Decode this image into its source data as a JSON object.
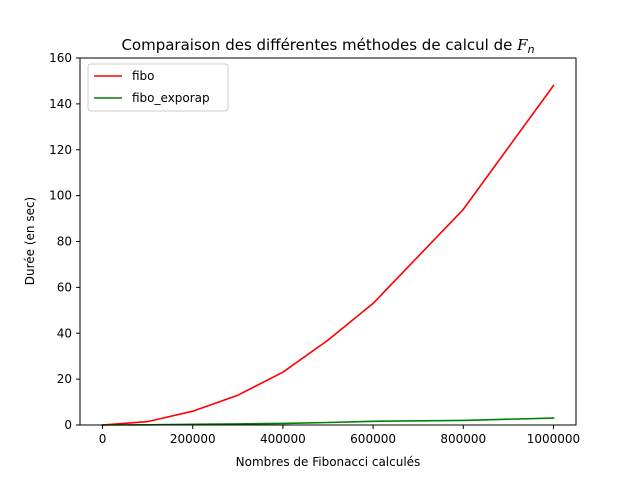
{
  "chart_data": {
    "type": "line",
    "title": "Comparaison des différentes méthodes de calcul de ",
    "title_math": "F",
    "title_math_sub": "n",
    "xlabel": "Nombres de Fibonacci calculés",
    "ylabel": "Durée (en sec)",
    "xlim": [
      -50000,
      1050000
    ],
    "ylim": [
      0,
      160
    ],
    "xticks": [
      0,
      200000,
      400000,
      600000,
      800000,
      1000000
    ],
    "yticks": [
      0,
      20,
      40,
      60,
      80,
      100,
      120,
      140,
      160
    ],
    "grid": false,
    "legend_position": "top-left",
    "series": [
      {
        "name": "fibo",
        "color": "#ff0000",
        "x": [
          0,
          100000,
          200000,
          300000,
          400000,
          500000,
          600000,
          800000,
          1000000
        ],
        "y": [
          0,
          1.5,
          6,
          13,
          23,
          37,
          53,
          94,
          148
        ]
      },
      {
        "name": "fibo_exporap",
        "color": "#008000",
        "x": [
          0,
          100000,
          200000,
          300000,
          400000,
          500000,
          600000,
          800000,
          1000000
        ],
        "y": [
          0,
          0.1,
          0.3,
          0.5,
          0.7,
          1.1,
          1.6,
          2.0,
          3.0
        ]
      }
    ]
  }
}
